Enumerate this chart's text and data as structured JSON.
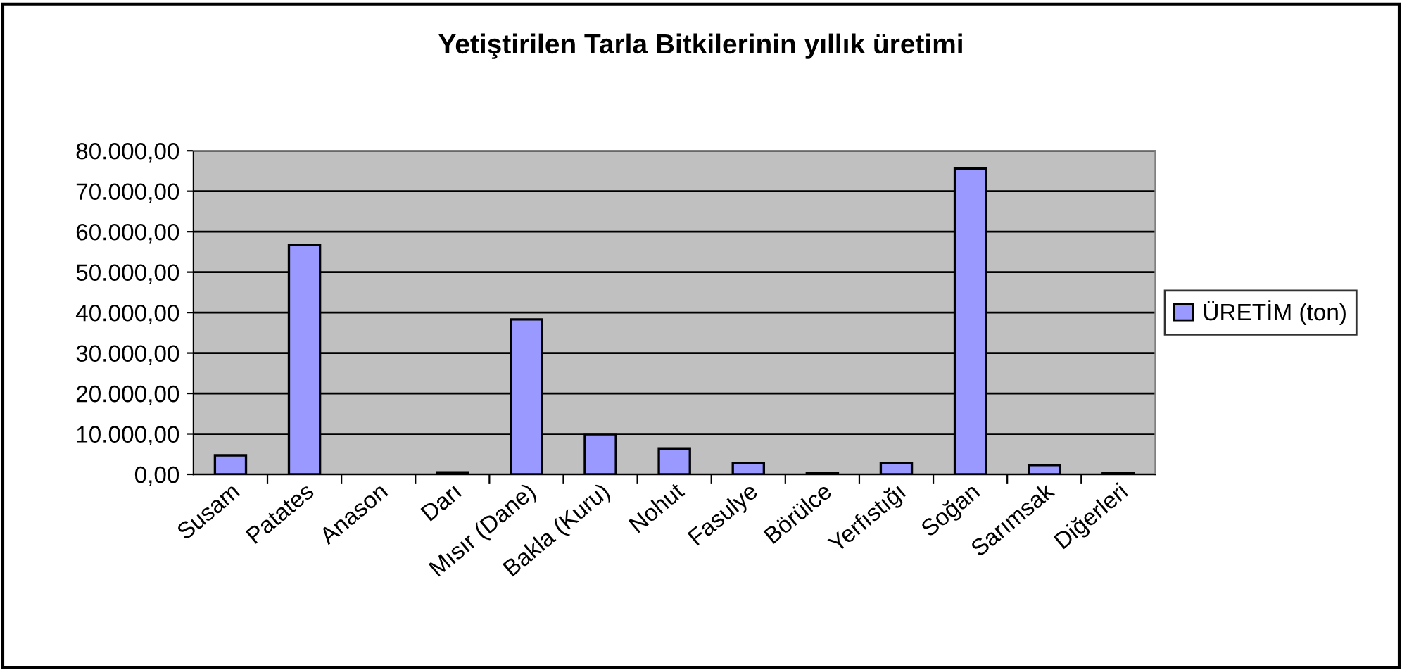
{
  "chart_data": {
    "type": "bar",
    "title": "Yetiştirilen Tarla Bitkilerinin yıllık üretimi",
    "categories": [
      "Susam",
      "Patates",
      "Anason",
      "Darı",
      "Mısır (Dane)",
      "Bakla (Kuru)",
      "Nohut",
      "Fasulye",
      "Börülce",
      "Yerfıstığı",
      "Soğan",
      "Sarımsak",
      "Diğerleri"
    ],
    "series": [
      {
        "name": "ÜRETİM (ton)",
        "color": "#9999ff",
        "values": [
          4700,
          56700,
          null,
          500,
          38300,
          9900,
          6400,
          2800,
          300,
          2800,
          75600,
          2300,
          300
        ]
      }
    ],
    "ylim": [
      0,
      80000
    ],
    "yticks": [
      {
        "value": 0,
        "label": "0,00"
      },
      {
        "value": 10000,
        "label": "10.000,00"
      },
      {
        "value": 20000,
        "label": "20.000,00"
      },
      {
        "value": 30000,
        "label": "30.000,00"
      },
      {
        "value": 40000,
        "label": "40.000,00"
      },
      {
        "value": 50000,
        "label": "50.000,00"
      },
      {
        "value": 60000,
        "label": "60.000,00"
      },
      {
        "value": 70000,
        "label": "70.000,00"
      },
      {
        "value": 80000,
        "label": "80.000,00"
      }
    ],
    "grid": "y",
    "legend": "right"
  }
}
